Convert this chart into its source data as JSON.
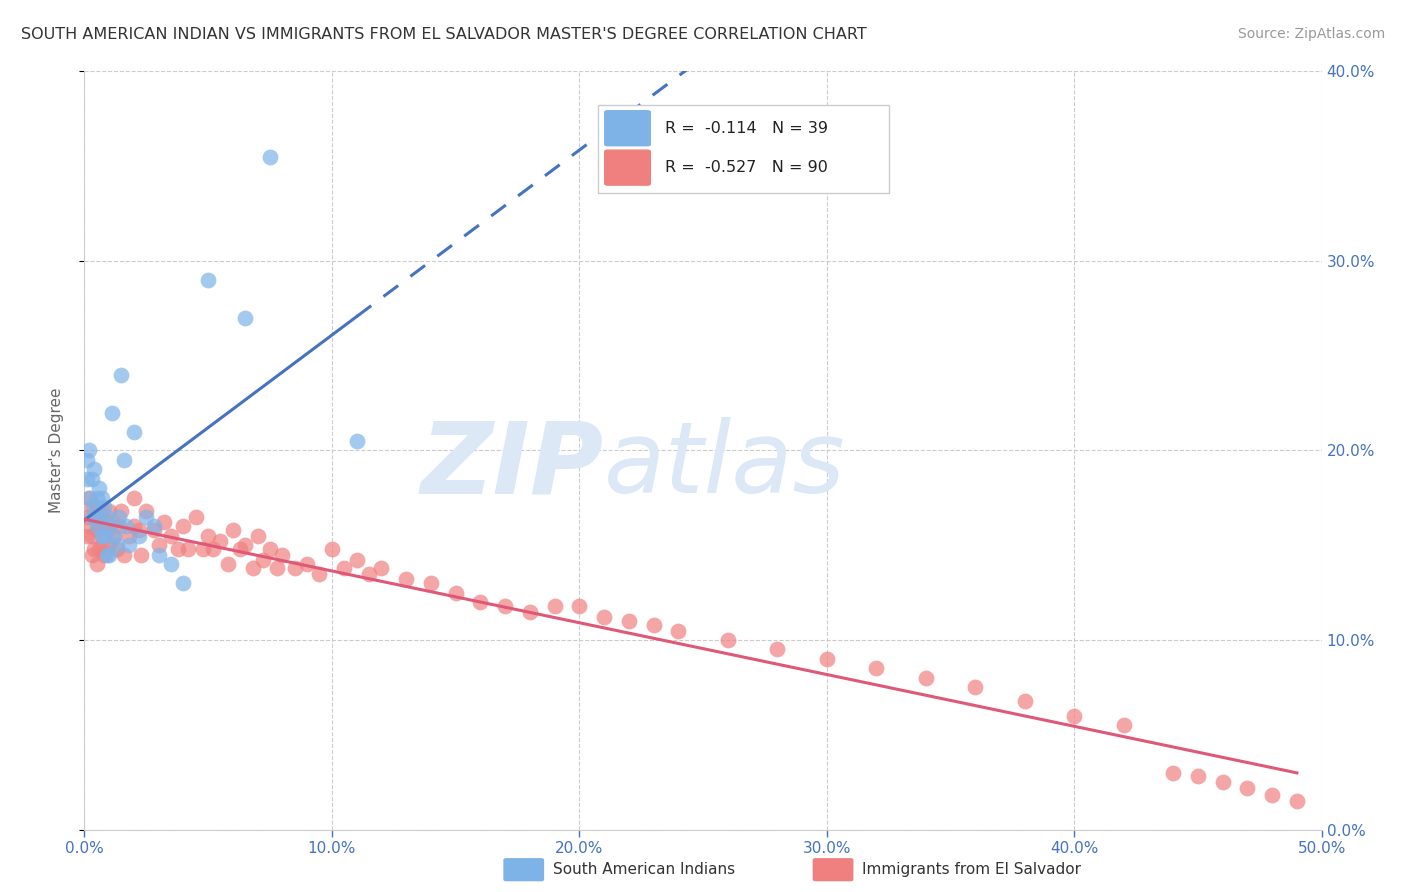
{
  "title": "SOUTH AMERICAN INDIAN VS IMMIGRANTS FROM EL SALVADOR MASTER'S DEGREE CORRELATION CHART",
  "source": "Source: ZipAtlas.com",
  "ylabel": "Master's Degree",
  "xlim": [
    0.0,
    0.5
  ],
  "ylim": [
    0.0,
    0.4
  ],
  "xticks": [
    0.0,
    0.1,
    0.2,
    0.3,
    0.4,
    0.5
  ],
  "yticks": [
    0.0,
    0.1,
    0.2,
    0.3,
    0.4
  ],
  "xtick_labels": [
    "0.0%",
    "10.0%",
    "20.0%",
    "30.0%",
    "40.0%",
    "50.0%"
  ],
  "ytick_labels_right": [
    "0.0%",
    "10.0%",
    "20.0%",
    "30.0%",
    "40.0%"
  ],
  "blue_color": "#7EB3E8",
  "pink_color": "#F08080",
  "blue_line_color": "#4472c4",
  "pink_line_color": "#E05878",
  "legend_blue_r": "-0.114",
  "legend_blue_n": "39",
  "legend_pink_r": "-0.527",
  "legend_pink_n": "90",
  "legend_label_blue": "South American Indians",
  "legend_label_pink": "Immigrants from El Salvador",
  "blue_scatter_x": [
    0.001,
    0.001,
    0.002,
    0.002,
    0.003,
    0.003,
    0.004,
    0.004,
    0.005,
    0.005,
    0.006,
    0.006,
    0.007,
    0.007,
    0.008,
    0.008,
    0.009,
    0.009,
    0.01,
    0.01,
    0.011,
    0.012,
    0.013,
    0.014,
    0.015,
    0.016,
    0.017,
    0.018,
    0.02,
    0.022,
    0.025,
    0.028,
    0.03,
    0.035,
    0.04,
    0.05,
    0.065,
    0.075,
    0.11
  ],
  "blue_scatter_y": [
    0.195,
    0.185,
    0.2,
    0.175,
    0.185,
    0.165,
    0.19,
    0.17,
    0.175,
    0.16,
    0.18,
    0.165,
    0.175,
    0.155,
    0.17,
    0.155,
    0.165,
    0.145,
    0.16,
    0.145,
    0.22,
    0.155,
    0.15,
    0.165,
    0.24,
    0.195,
    0.16,
    0.15,
    0.21,
    0.155,
    0.165,
    0.16,
    0.145,
    0.14,
    0.13,
    0.29,
    0.27,
    0.355,
    0.205
  ],
  "pink_scatter_x": [
    0.001,
    0.001,
    0.002,
    0.002,
    0.003,
    0.003,
    0.003,
    0.004,
    0.004,
    0.005,
    0.005,
    0.005,
    0.006,
    0.006,
    0.007,
    0.007,
    0.008,
    0.008,
    0.009,
    0.01,
    0.01,
    0.011,
    0.012,
    0.013,
    0.014,
    0.015,
    0.016,
    0.018,
    0.02,
    0.02,
    0.022,
    0.023,
    0.025,
    0.028,
    0.03,
    0.032,
    0.035,
    0.038,
    0.04,
    0.042,
    0.045,
    0.048,
    0.05,
    0.052,
    0.055,
    0.058,
    0.06,
    0.063,
    0.065,
    0.068,
    0.07,
    0.072,
    0.075,
    0.078,
    0.08,
    0.085,
    0.09,
    0.095,
    0.1,
    0.105,
    0.11,
    0.115,
    0.12,
    0.13,
    0.14,
    0.15,
    0.16,
    0.17,
    0.18,
    0.19,
    0.2,
    0.21,
    0.22,
    0.23,
    0.24,
    0.26,
    0.28,
    0.3,
    0.32,
    0.34,
    0.36,
    0.38,
    0.4,
    0.42,
    0.44,
    0.45,
    0.46,
    0.47,
    0.48,
    0.49
  ],
  "pink_scatter_y": [
    0.165,
    0.155,
    0.175,
    0.16,
    0.17,
    0.155,
    0.145,
    0.165,
    0.148,
    0.17,
    0.158,
    0.14,
    0.165,
    0.148,
    0.168,
    0.15,
    0.16,
    0.145,
    0.158,
    0.168,
    0.15,
    0.162,
    0.155,
    0.148,
    0.16,
    0.168,
    0.145,
    0.155,
    0.175,
    0.16,
    0.158,
    0.145,
    0.168,
    0.158,
    0.15,
    0.162,
    0.155,
    0.148,
    0.16,
    0.148,
    0.165,
    0.148,
    0.155,
    0.148,
    0.152,
    0.14,
    0.158,
    0.148,
    0.15,
    0.138,
    0.155,
    0.142,
    0.148,
    0.138,
    0.145,
    0.138,
    0.14,
    0.135,
    0.148,
    0.138,
    0.142,
    0.135,
    0.138,
    0.132,
    0.13,
    0.125,
    0.12,
    0.118,
    0.115,
    0.118,
    0.118,
    0.112,
    0.11,
    0.108,
    0.105,
    0.1,
    0.095,
    0.09,
    0.085,
    0.08,
    0.075,
    0.068,
    0.06,
    0.055,
    0.03,
    0.028,
    0.025,
    0.022,
    0.018,
    0.015
  ],
  "background_color": "#ffffff",
  "grid_color": "#cccccc",
  "title_color": "#333333",
  "axis_label_color": "#4472c4",
  "watermark_zip": "ZIP",
  "watermark_atlas": "atlas",
  "watermark_color": "#dce8f5"
}
